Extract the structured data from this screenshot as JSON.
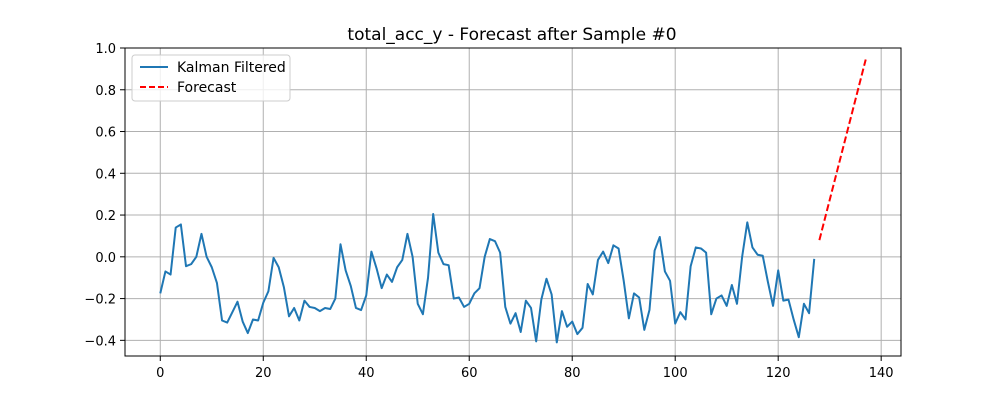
{
  "chart_data": {
    "type": "line",
    "title": "total_acc_y - Forecast after Sample #0",
    "xlabel": "",
    "ylabel": "",
    "xlim": [
      -6.85,
      143.85
    ],
    "ylim": [
      -0.475,
      1.0
    ],
    "x_ticks": [
      0,
      20,
      40,
      60,
      80,
      100,
      120,
      140
    ],
    "y_ticks": [
      -0.4,
      -0.2,
      0.0,
      0.2,
      0.4,
      0.6,
      0.8,
      1.0
    ],
    "x_tick_labels": [
      "0",
      "20",
      "40",
      "60",
      "80",
      "100",
      "120",
      "140"
    ],
    "y_tick_labels": [
      "−0.4",
      "−0.2",
      "0.0",
      "0.2",
      "0.4",
      "0.6",
      "0.8",
      "1.0"
    ],
    "grid": true,
    "legend_position": "upper-left",
    "series": [
      {
        "name": "Kalman Filtered",
        "color": "#1f77b4",
        "style": "solid",
        "x_start": 0,
        "values": [
          -0.175,
          -0.07,
          -0.085,
          0.14,
          0.155,
          -0.045,
          -0.035,
          0.0,
          0.11,
          0.0,
          -0.05,
          -0.125,
          -0.305,
          -0.315,
          -0.265,
          -0.215,
          -0.31,
          -0.365,
          -0.3,
          -0.305,
          -0.22,
          -0.165,
          -0.005,
          -0.05,
          -0.145,
          -0.285,
          -0.245,
          -0.305,
          -0.21,
          -0.24,
          -0.245,
          -0.26,
          -0.245,
          -0.25,
          -0.2,
          0.06,
          -0.065,
          -0.14,
          -0.245,
          -0.255,
          -0.185,
          0.025,
          -0.055,
          -0.15,
          -0.085,
          -0.12,
          -0.05,
          -0.015,
          0.11,
          0.0,
          -0.225,
          -0.275,
          -0.1,
          0.205,
          0.02,
          -0.035,
          -0.04,
          -0.2,
          -0.195,
          -0.24,
          -0.225,
          -0.175,
          -0.15,
          0.0,
          0.085,
          0.075,
          0.02,
          -0.24,
          -0.32,
          -0.27,
          -0.36,
          -0.21,
          -0.245,
          -0.405,
          -0.205,
          -0.105,
          -0.18,
          -0.41,
          -0.26,
          -0.335,
          -0.31,
          -0.37,
          -0.34,
          -0.13,
          -0.18,
          -0.015,
          0.025,
          -0.03,
          0.055,
          0.04,
          -0.115,
          -0.295,
          -0.175,
          -0.195,
          -0.35,
          -0.255,
          0.03,
          0.095,
          -0.07,
          -0.115,
          -0.32,
          -0.265,
          -0.3,
          -0.045,
          0.045,
          0.04,
          0.02,
          -0.275,
          -0.2,
          -0.185,
          -0.235,
          -0.135,
          -0.225,
          0.0,
          0.165,
          0.045,
          0.01,
          0.005,
          -0.12,
          -0.235,
          -0.065,
          -0.21,
          -0.205,
          -0.3,
          -0.385,
          -0.225,
          -0.27,
          -0.01
        ]
      },
      {
        "name": "Forecast",
        "color": "#ff0000",
        "style": "dashed",
        "x": [
          128,
          137
        ],
        "values": [
          0.08,
          0.945
        ]
      }
    ]
  }
}
